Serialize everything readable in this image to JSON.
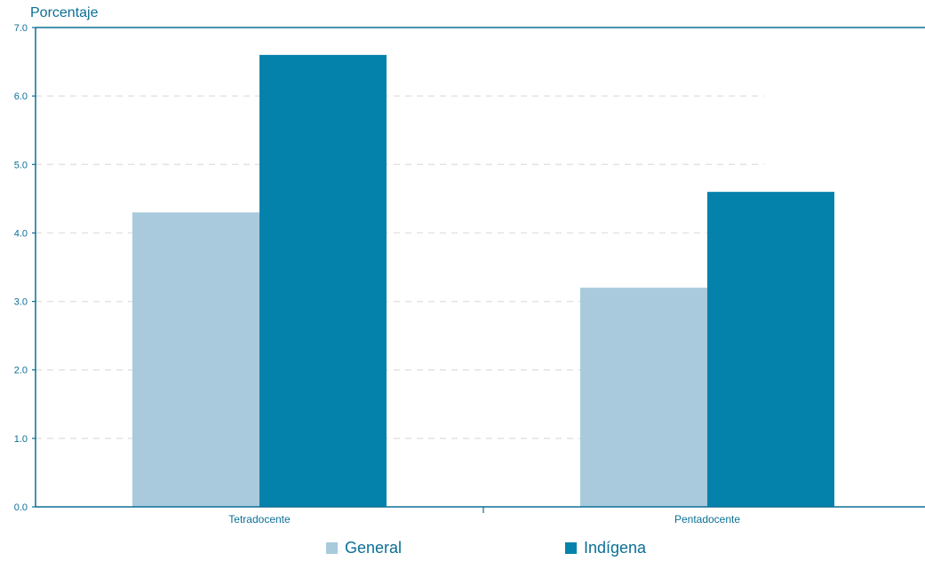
{
  "chart_data": {
    "type": "bar",
    "ylabel": "Porcentaje",
    "xlabel": "",
    "categories": [
      "Tetradocente",
      "Pentadocente"
    ],
    "series": [
      {
        "name": "General",
        "values": [
          4.3,
          3.2
        ],
        "color": "#a8cadc"
      },
      {
        "name": "Indígena",
        "values": [
          6.6,
          4.6
        ],
        "color": "#0582ac"
      }
    ],
    "ylim": [
      0,
      7
    ],
    "yticks": [
      "0.0",
      "1.0",
      "2.0",
      "3.0",
      "4.0",
      "5.0",
      "6.0",
      "7.0"
    ],
    "grid": true,
    "legend_position": "bottom"
  }
}
